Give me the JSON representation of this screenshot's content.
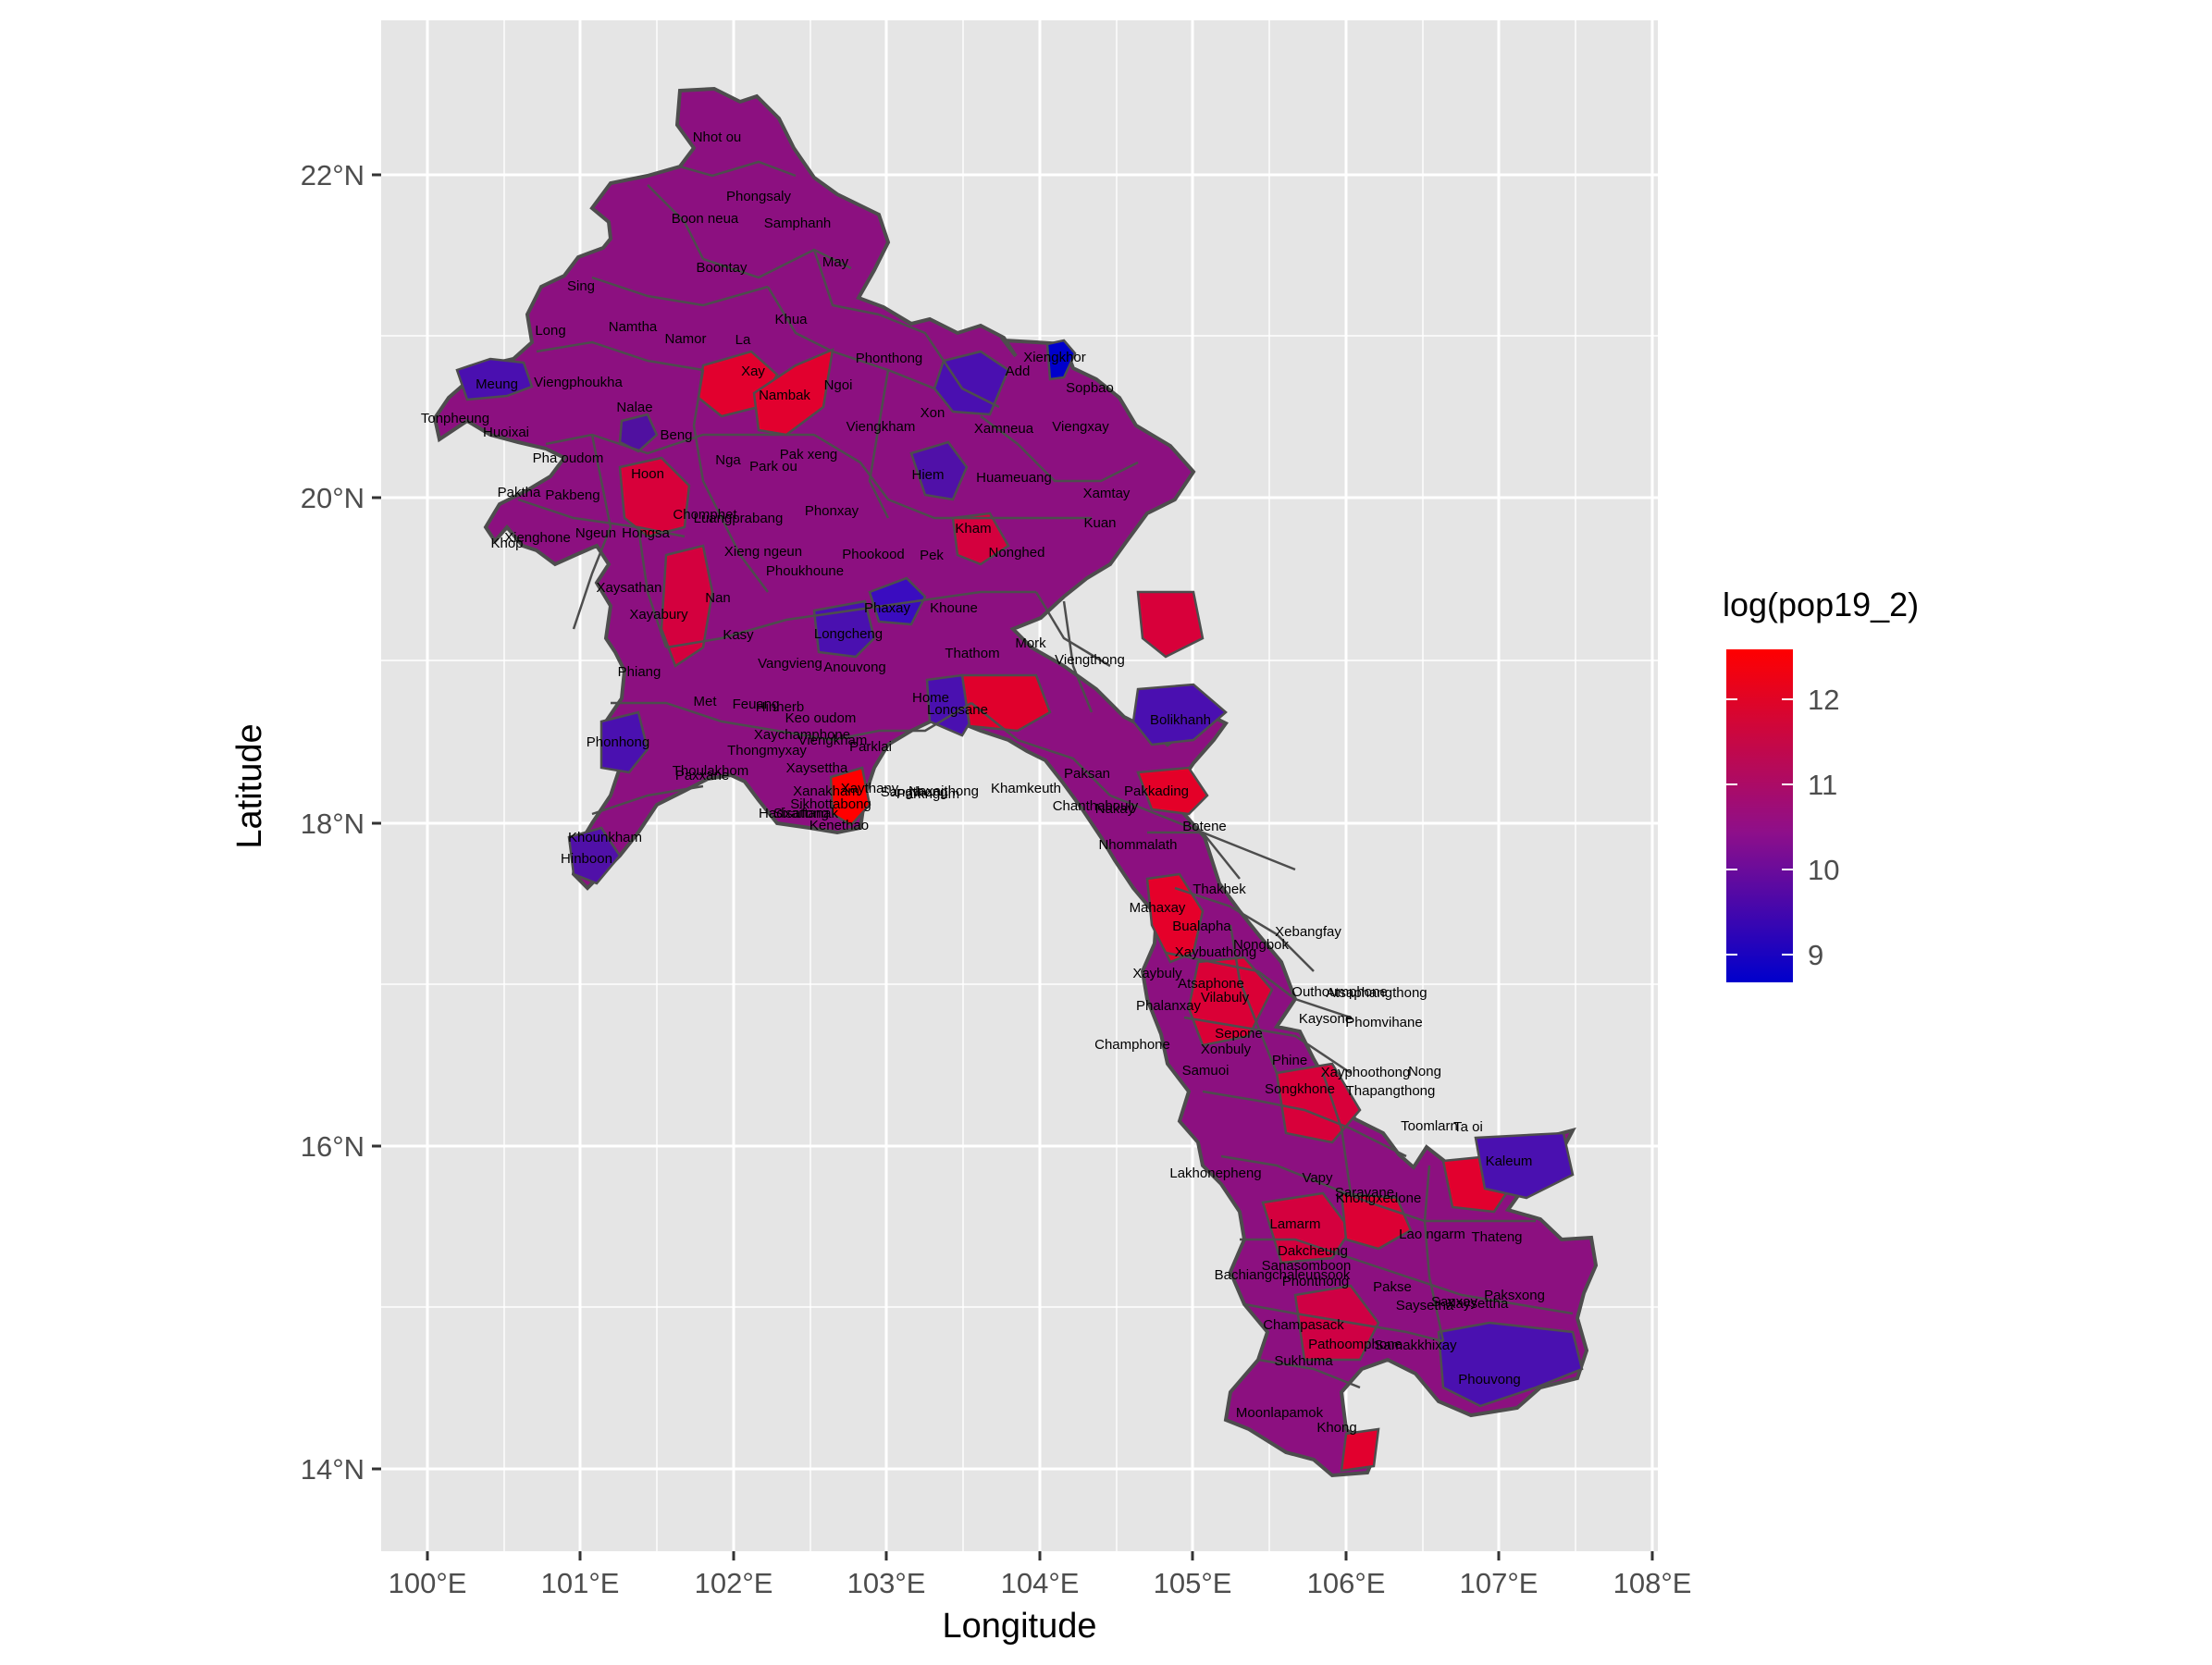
{
  "map": {
    "x_axis_title": "Longitude",
    "y_axis_title": "Latitude",
    "x_ticks": [
      "100°E",
      "101°E",
      "102°E",
      "103°E",
      "104°E",
      "105°E",
      "106°E",
      "107°E",
      "108°E"
    ],
    "y_ticks": [
      "14°N",
      "16°N",
      "18°N",
      "20°N",
      "22°N"
    ],
    "panel_background": "#e5e5e5",
    "grid_color": "#ffffff",
    "border_color": "#4d4d4d",
    "fill_color": "#8c1080"
  },
  "legend": {
    "title": "log(pop19_2)",
    "labels": [
      "12",
      "11",
      "10",
      "9"
    ],
    "color_high": "#ff0000",
    "color_mid": "#8e0f8a",
    "color_low": "#0000cc"
  },
  "district_labels": [
    "Nhot ou",
    "Phongsaly",
    "Boon neua",
    "Samphanh",
    "Boontay",
    "May",
    "Sing",
    "Khua",
    "Long",
    "Namtha",
    "Namor",
    "La",
    "Phonthong",
    "Xiengkhor",
    "Add",
    "Sopbao",
    "Meung",
    "Viengphoukha",
    "Xay",
    "Ngoi",
    "Nambak",
    "Tonpheung",
    "Nalae",
    "Xon",
    "Huoixai",
    "Beng",
    "Viengkham",
    "Xamneua",
    "Viengxay",
    "Pha oudom",
    "Nga",
    "Pak xeng",
    "Park ou",
    "Hoon",
    "Hiem",
    "Huameuang",
    "Xamtay",
    "Paktha",
    "Pakbeng",
    "Phonxay",
    "Chomphet",
    "Luangprabang",
    "Kham",
    "Kuan",
    "Ngeun",
    "Xienghone",
    "Hongsa",
    "Khop",
    "Xieng ngeun",
    "Pek",
    "Phookood",
    "Nonghed",
    "Phoukhoune",
    "Xaysathan",
    "Nan",
    "Xayabury",
    "Phaxay",
    "Khoune",
    "Longcheng",
    "Kasy",
    "Mork",
    "Thathom",
    "Vangvieng",
    "Anouvong",
    "Phiang",
    "Viengthong",
    "Home",
    "Met",
    "Feuang",
    "Hinherb",
    "Keo oudom",
    "Longsane",
    "Bolikhanh",
    "Xaychamphone",
    "Phonhong",
    "Viengkham",
    "Thongmyxay",
    "Parklai",
    "Thoulakhom",
    "Xaysettha",
    "Sangthong",
    "Naxaithong",
    "Paksan",
    "Pakkading",
    "Khamkeuth",
    "Paxxane",
    "Xanakham",
    "Xaythany",
    "Parkngum",
    "Sikhottabong",
    "Chanthabouly",
    "Sisattanak",
    "Hadxaifong",
    "Kenethao",
    "Khounkham",
    "Nakay",
    "Botene",
    "Hinboon",
    "Nhommalath",
    "Thakhek",
    "Mahaxay",
    "Bualapha",
    "Xebangfay",
    "Xaybuathong",
    "Nongbok",
    "Xaybuly",
    "Atsaphone",
    "Vilabuly",
    "Outhoumphone",
    "Atsaphangthong",
    "Phalanxay",
    "Sepone",
    "Kaysone",
    "Phomvihane",
    "Champhone",
    "Xonbuly",
    "Phine",
    "Xayphoothong",
    "Nong",
    "Samuoi",
    "Songkhone",
    "Thapangthong",
    "Toomlarn",
    "Ta oi",
    "Kaleum",
    "Lakhonepheng",
    "Vapy",
    "Saravane",
    "Khongxedone",
    "Lao ngarm",
    "Thateng",
    "Lamarm",
    "Dakcheung",
    "Sanasomboon",
    "Bachiangchaleunsook",
    "Phonthong",
    "Pakse",
    "Paksxong",
    "Sanxay",
    "Saysetha",
    "Xaysettha",
    "Champasack",
    "Pathoomphone",
    "Samakkhixay",
    "Sukhuma",
    "Phouvong",
    "Moonlapamok",
    "Khong"
  ]
}
